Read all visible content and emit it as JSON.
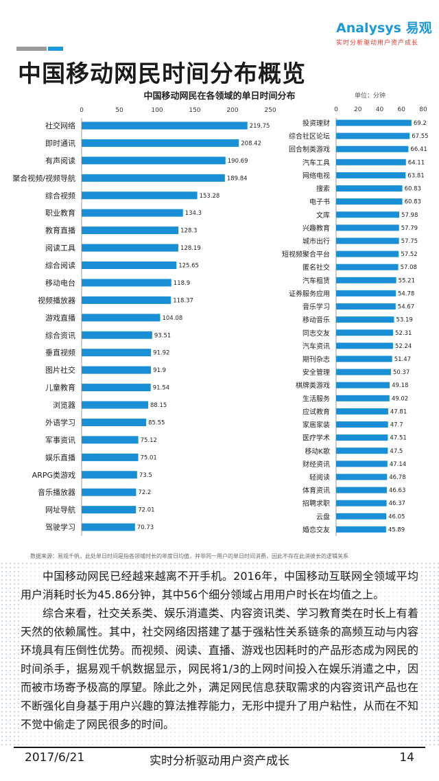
{
  "header": {
    "logo_text": "Analysys 易观",
    "logo_slogan": "实时分析驱动用户资产成长",
    "title": "中国移动网民时间分布概览",
    "accent_color": "#1a9ad6"
  },
  "chart_data": [
    {
      "type": "bar",
      "orientation": "horizontal",
      "title": "中国移动网民在各领域的单日时间分布",
      "xlim": [
        0,
        250
      ],
      "ticks": [
        "0",
        "50",
        "100",
        "150",
        "200",
        "250"
      ],
      "bar_color": "#1a8fd6",
      "categories": [
        "社交网络",
        "即时通讯",
        "有声阅读",
        "聚合视频/视频导航",
        "综合视频",
        "职业教育",
        "教育直播",
        "阅读工具",
        "综合阅读",
        "移动电台",
        "视频播放器",
        "游戏直播",
        "综合资讯",
        "垂直视频",
        "图片社交",
        "儿童教育",
        "浏览器",
        "外语学习",
        "军事资讯",
        "娱乐直播",
        "ARPG类游戏",
        "音乐播放器",
        "网址导航",
        "驾驶学习"
      ],
      "values": [
        219.75,
        208.42,
        190.69,
        189.84,
        153.28,
        134.3,
        128.3,
        128.19,
        125.65,
        118.9,
        118.37,
        104.08,
        93.51,
        91.92,
        91.9,
        91.54,
        88.15,
        85.55,
        75.12,
        75.01,
        73.5,
        72.2,
        72.01,
        70.73
      ],
      "labels": [
        "219.75",
        "208.42",
        "190.69",
        "189.84",
        "153.28",
        "134.3",
        "128.3",
        "128.19",
        "125.65",
        "118.9",
        "118.37",
        "104.08",
        "93.51",
        "91.92",
        "91.9",
        "91.54",
        "88.15",
        "85.55",
        "75.12",
        "75.01",
        "73.5",
        "72.2",
        "72.01",
        "70.73"
      ]
    },
    {
      "type": "bar",
      "orientation": "horizontal",
      "unit_label": "单位：分钟",
      "xlim": [
        0,
        80
      ],
      "ticks": [
        "0",
        "20",
        "40",
        "60",
        "80"
      ],
      "bar_color": "#1a8fd6",
      "categories": [
        "投资理财",
        "综合社区论坛",
        "回合制类游戏",
        "汽车工具",
        "网络电视",
        "搜索",
        "电子书",
        "文库",
        "兴趣教育",
        "城市出行",
        "短视频聚合平台",
        "匿名社交",
        "汽车租赁",
        "证券服务应用",
        "音乐学习",
        "移动音乐",
        "同志交友",
        "汽车资讯",
        "期刊杂志",
        "安全管理",
        "棋牌类游戏",
        "生活服务",
        "应试教育",
        "家居家装",
        "医疗学术",
        "移动K歌",
        "财经资讯",
        "轻阅读",
        "体育资讯",
        "招聘求职",
        "云盘",
        "婚恋交友"
      ],
      "values": [
        69.2,
        67.55,
        66.41,
        64.11,
        63.81,
        60.83,
        60.83,
        57.98,
        57.79,
        57.75,
        57.52,
        57.08,
        55.21,
        54.78,
        54.67,
        53.19,
        52.31,
        52.24,
        51.47,
        50.37,
        49.18,
        49.02,
        47.81,
        47.7,
        47.51,
        47.5,
        47.14,
        46.78,
        46.63,
        46.37,
        46.05,
        45.89
      ],
      "labels": [
        "69.2",
        "67.55",
        "66.41",
        "64.11",
        "63.81",
        "60.83",
        "60.83",
        "57.98",
        "57.79",
        "57.75",
        "57.52",
        "57.08",
        "55.21",
        "54.78",
        "54.67",
        "53.19",
        "52.31",
        "52.24",
        "51.47",
        "50.37",
        "49.18",
        "49.02",
        "47.81",
        "47.7",
        "47.51",
        "47.5",
        "47.14",
        "46.78",
        "46.63",
        "46.37",
        "46.05",
        "45.89"
      ]
    }
  ],
  "source_note": "数据来源：易观千帆，此处单日时间是指各领域时长的年度日均值，并非同一用户的单日时间消费，因此不存在此消彼长的逻辑关系",
  "article": {
    "paragraphs": [
      "中国移动网民已经越来越离不开手机。2016年，中国移动互联网全领域平均用户消耗时长为45.86分钟，其中56个细分领域占用用户时长在均值之上。",
      "综合来看，社交关系类、娱乐消遣类、内容资讯类、学习教育类在时长上有着天然的依赖属性。其中，社交网络因搭建了基于强粘性关系链条的高频互动与内容环境具有压倒性优势。而视频、阅读、直播、游戏也因耗时的产品形态成为网民的时间杀手，据易观千帆数据显示，网民将1/3的上网时间投入在娱乐消遣之中，因而被市场寄予极高的厚望。除此之外，满足网民信息获取需求的内容资讯产品也在不断强化自身基于用户兴趣的算法推荐能力，无形中提升了用户粘性，从而在不知不觉中偷走了网民很多的时间。"
    ]
  },
  "footer": {
    "date": "2017/6/21",
    "slogan": "实时分析驱动用户资产成长",
    "page": "14"
  }
}
